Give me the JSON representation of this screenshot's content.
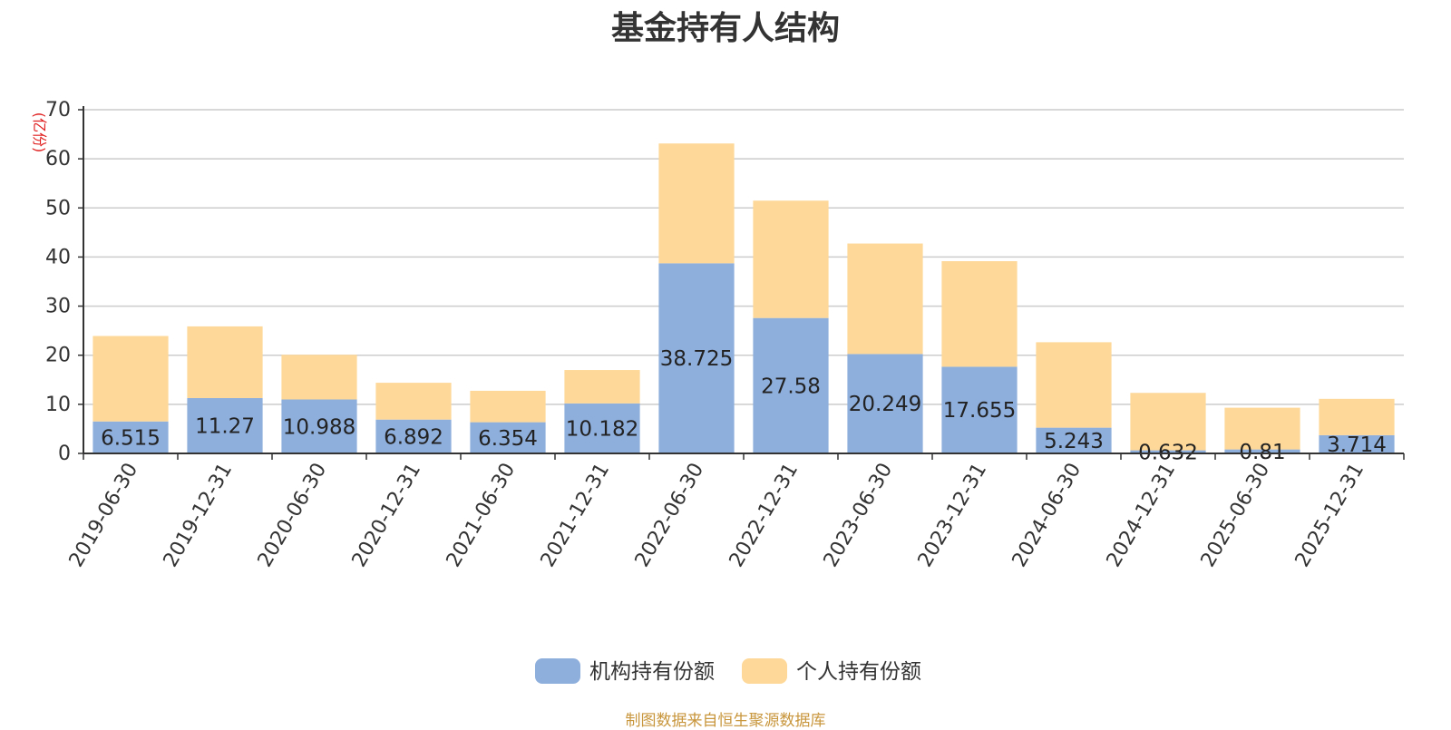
{
  "chart_data": {
    "type": "bar",
    "stacked": true,
    "title": "基金持有人结构",
    "ylabel": "亿份",
    "xlabel": "",
    "ylim": [
      0,
      70
    ],
    "yticks": [
      0,
      10,
      20,
      30,
      40,
      50,
      60,
      70
    ],
    "grid": true,
    "legend_position": "bottom-center",
    "categories": [
      "2019-06-30",
      "2019-12-31",
      "2020-06-30",
      "2020-12-31",
      "2021-06-30",
      "2021-12-31",
      "2022-06-30",
      "2022-12-31",
      "2023-06-30",
      "2023-12-31",
      "2024-06-30",
      "2024-12-31",
      "2025-06-30",
      "2025-12-31"
    ],
    "series": [
      {
        "name": "机构持有份额",
        "color": "#8eaedc",
        "values": [
          6.515,
          11.27,
          10.988,
          6.892,
          6.354,
          10.182,
          38.725,
          27.58,
          20.249,
          17.655,
          5.243,
          0.632,
          0.81,
          3.714
        ],
        "labels": [
          "6.515",
          "11.27",
          "10.988",
          "6.892",
          "6.354",
          "10.182",
          "38.725",
          "27.58",
          "20.249",
          "17.655",
          "5.243",
          "0.632",
          "0.81",
          "3.714"
        ]
      },
      {
        "name": "个人持有份额",
        "color": "#fed898",
        "values": [
          17.4,
          14.6,
          9.1,
          7.5,
          6.4,
          6.8,
          24.4,
          23.9,
          22.5,
          21.5,
          17.4,
          11.7,
          8.5,
          7.4
        ]
      }
    ],
    "source": "制图数据来自恒生聚源数据库",
    "source_color": "#c8963c",
    "axis_color": "#333333",
    "grid_color": "#cccccc",
    "title_color": "#333333",
    "ylabel_color": "#e02020"
  }
}
